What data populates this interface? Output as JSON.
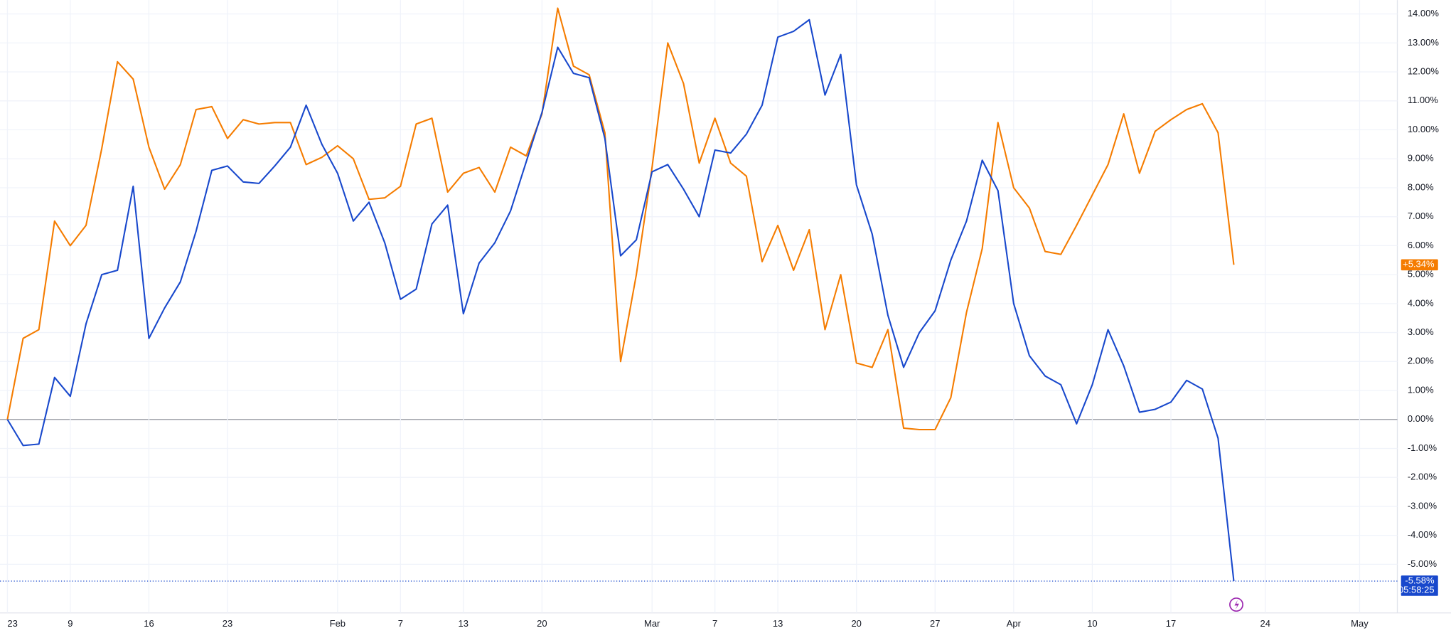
{
  "chart_data": {
    "type": "line",
    "x": [
      0,
      1,
      2,
      3,
      4,
      5,
      6,
      7,
      8,
      9,
      10,
      11,
      12,
      13,
      14,
      15,
      16,
      17,
      18,
      19,
      20,
      21,
      22,
      23,
      24,
      25,
      26,
      27,
      28,
      29,
      30,
      31,
      32,
      33,
      34,
      35,
      36,
      37,
      38,
      39,
      40,
      41,
      42,
      43,
      44,
      45,
      46,
      47,
      48,
      49,
      50,
      51,
      52,
      53,
      54,
      55,
      56,
      57,
      58,
      59,
      60,
      61,
      62,
      63,
      64,
      65,
      66,
      67,
      68,
      69,
      70,
      71,
      72,
      73,
      74,
      75,
      76,
      77,
      78
    ],
    "xlim": [
      0,
      88.4
    ],
    "xticks": [
      {
        "value": 0,
        "label": "23"
      },
      {
        "value": 4,
        "label": "9"
      },
      {
        "value": 9,
        "label": "16"
      },
      {
        "value": 14,
        "label": "23"
      },
      {
        "value": 21,
        "label": "Feb"
      },
      {
        "value": 25,
        "label": "7"
      },
      {
        "value": 29,
        "label": "13"
      },
      {
        "value": 34,
        "label": "20"
      },
      {
        "value": 41,
        "label": "Mar"
      },
      {
        "value": 45,
        "label": "7"
      },
      {
        "value": 49,
        "label": "13"
      },
      {
        "value": 54,
        "label": "20"
      },
      {
        "value": 59,
        "label": "27"
      },
      {
        "value": 64,
        "label": "Apr"
      },
      {
        "value": 69,
        "label": "10"
      },
      {
        "value": 74,
        "label": "17"
      },
      {
        "value": 80,
        "label": "24"
      },
      {
        "value": 86,
        "label": "May"
      }
    ],
    "ylim": [
      -6.68,
      14.48
    ],
    "yticks": [
      {
        "value": 14,
        "label": "14.00%"
      },
      {
        "value": 13,
        "label": "13.00%"
      },
      {
        "value": 12,
        "label": "12.00%"
      },
      {
        "value": 11,
        "label": "11.00%"
      },
      {
        "value": 10,
        "label": "10.00%"
      },
      {
        "value": 9,
        "label": "9.00%"
      },
      {
        "value": 8,
        "label": "8.00%"
      },
      {
        "value": 7,
        "label": "7.00%"
      },
      {
        "value": 6,
        "label": "6.00%"
      },
      {
        "value": 5,
        "label": "5.00%"
      },
      {
        "value": 4,
        "label": "4.00%"
      },
      {
        "value": 3,
        "label": "3.00%"
      },
      {
        "value": 2,
        "label": "2.00%"
      },
      {
        "value": 1,
        "label": "1.00%"
      },
      {
        "value": 0,
        "label": "0.00%"
      },
      {
        "value": -1,
        "label": "-1.00%"
      },
      {
        "value": -2,
        "label": "-2.00%"
      },
      {
        "value": -3,
        "label": "-3.00%"
      },
      {
        "value": -4,
        "label": "-4.00%"
      },
      {
        "value": -5,
        "label": "-5.00%"
      }
    ],
    "grid": true,
    "series": [
      {
        "color": "#f57c00",
        "last_label": "+5.34%",
        "values": [
          0,
          2.8,
          3.1,
          6.85,
          6.0,
          6.7,
          9.35,
          12.35,
          11.75,
          9.4,
          7.95,
          8.8,
          10.7,
          10.8,
          9.7,
          10.35,
          10.2,
          10.25,
          10.25,
          8.8,
          9.05,
          9.45,
          9.0,
          7.6,
          7.65,
          8.05,
          10.2,
          10.4,
          7.85,
          8.5,
          8.7,
          7.85,
          9.4,
          9.1,
          10.55,
          14.2,
          12.2,
          11.9,
          9.9,
          2.0,
          5.0,
          8.7,
          13.0,
          11.6,
          8.85,
          10.4,
          8.85,
          8.4,
          5.45,
          6.7,
          5.15,
          6.55,
          3.1,
          5.0,
          1.95,
          1.8,
          3.1,
          -0.3,
          -0.35,
          -0.35,
          0.75,
          3.7,
          5.9,
          10.25,
          8.0,
          7.3,
          5.8,
          5.7,
          6.7,
          7.75,
          8.8,
          10.55,
          8.5,
          9.95,
          10.35,
          10.7,
          10.9,
          9.9,
          5.34
        ]
      },
      {
        "color": "#1848cc",
        "last_label": "-5.58%",
        "countdown": "05:58:25",
        "values": [
          0,
          -0.9,
          -0.85,
          1.45,
          0.8,
          3.3,
          5.0,
          5.15,
          8.05,
          2.8,
          3.85,
          4.75,
          6.5,
          8.6,
          8.75,
          8.2,
          8.15,
          8.75,
          9.4,
          10.85,
          9.5,
          8.5,
          6.85,
          7.5,
          6.1,
          4.15,
          4.5,
          6.75,
          7.4,
          3.65,
          5.4,
          6.1,
          7.2,
          8.9,
          10.6,
          12.85,
          11.95,
          11.8,
          9.7,
          5.65,
          6.2,
          8.55,
          8.8,
          7.95,
          7.0,
          9.3,
          9.2,
          9.85,
          10.85,
          13.2,
          13.4,
          13.8,
          11.2,
          12.6,
          8.1,
          6.4,
          3.6,
          1.8,
          3.0,
          3.75,
          5.5,
          6.85,
          8.95,
          7.9,
          4.0,
          2.2,
          1.5,
          1.2,
          -0.15,
          1.2,
          3.1,
          1.85,
          0.25,
          0.35,
          0.6,
          1.35,
          1.05,
          -0.65,
          -5.58
        ]
      }
    ]
  }
}
